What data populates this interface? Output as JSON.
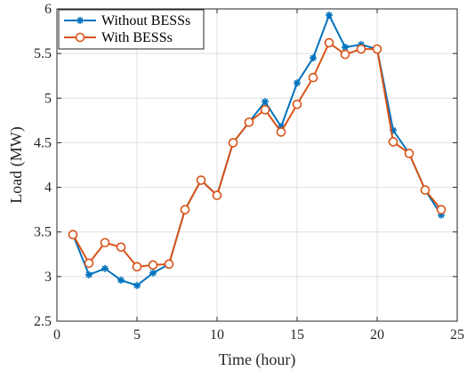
{
  "chart_data": {
    "type": "line",
    "title": "",
    "xlabel": "Time (hour)",
    "ylabel": "Load (MW)",
    "xlim": [
      0,
      25
    ],
    "ylim": [
      2.5,
      6
    ],
    "xticks": [
      0,
      5,
      10,
      15,
      20,
      25
    ],
    "yticks": [
      2.5,
      3,
      3.5,
      4,
      4.5,
      5,
      5.5,
      6
    ],
    "xtick_labels": [
      "0",
      "5",
      "10",
      "15",
      "20",
      "25"
    ],
    "ytick_labels": [
      "2.5",
      "3",
      "3.5",
      "4",
      "4.5",
      "5",
      "5.5",
      "6"
    ],
    "grid": true,
    "legend_position": "top-left",
    "x": [
      1,
      2,
      3,
      4,
      5,
      6,
      7,
      8,
      9,
      10,
      11,
      12,
      13,
      14,
      15,
      16,
      17,
      18,
      19,
      20,
      21,
      22,
      23,
      24
    ],
    "series": [
      {
        "name": "Without BESSs",
        "color": "#0072BD",
        "marker": "asterisk",
        "values": [
          3.47,
          3.02,
          3.09,
          2.96,
          2.9,
          3.04,
          3.14,
          3.75,
          4.08,
          3.91,
          4.5,
          4.73,
          4.96,
          4.68,
          5.17,
          5.45,
          5.93,
          5.57,
          5.6,
          5.55,
          4.64,
          4.38,
          3.97,
          3.69
        ]
      },
      {
        "name": "With BESSs",
        "color": "#D95319",
        "marker": "circle",
        "values": [
          3.47,
          3.15,
          3.38,
          3.33,
          3.11,
          3.13,
          3.14,
          3.75,
          4.08,
          3.91,
          4.5,
          4.73,
          4.87,
          4.62,
          4.93,
          5.23,
          5.62,
          5.49,
          5.55,
          5.55,
          4.51,
          4.38,
          3.97,
          3.75
        ]
      }
    ]
  }
}
